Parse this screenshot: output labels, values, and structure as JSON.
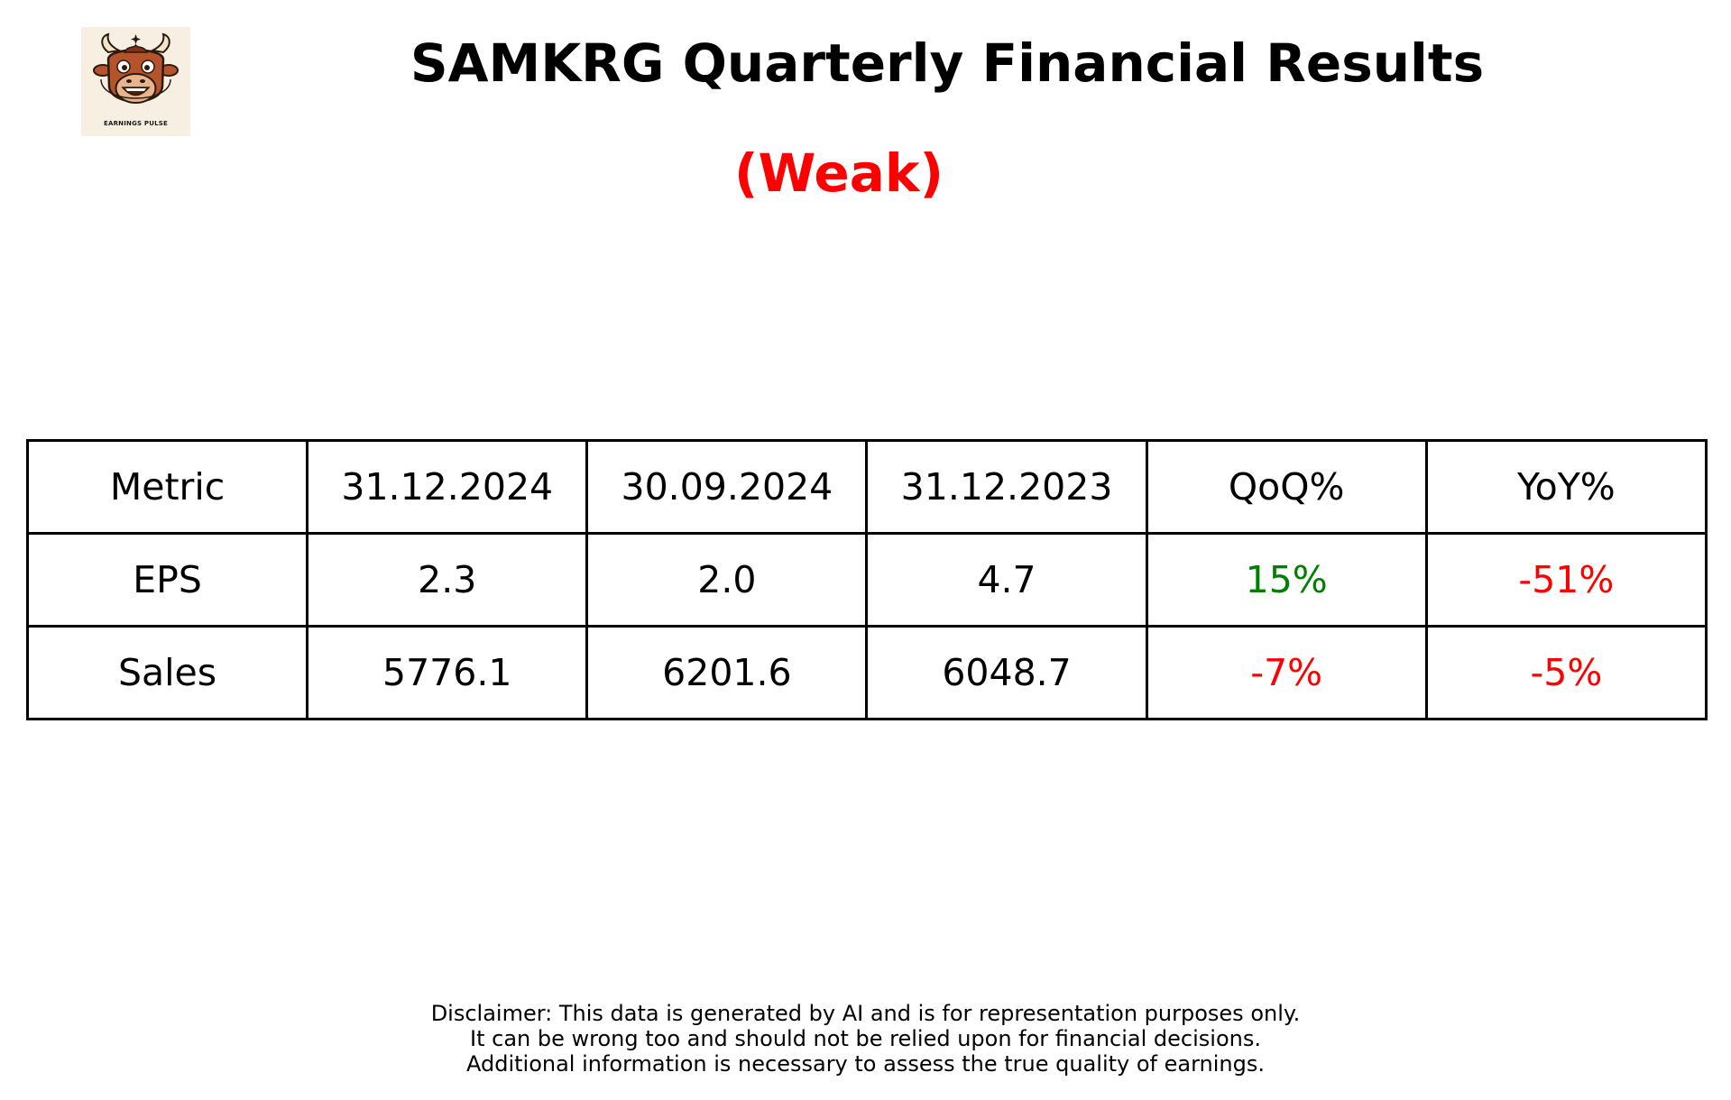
{
  "logo": {
    "text": "EARNINGS PULSE",
    "icon": "bull-mascot-icon"
  },
  "header": {
    "title": "SAMKRG Quarterly Financial Results",
    "rating": "(Weak)",
    "rating_color": "#ff0000"
  },
  "chart_data": {
    "type": "table",
    "columns": [
      "Metric",
      "31.12.2024",
      "30.09.2024",
      "31.12.2023",
      "QoQ%",
      "YoY%"
    ],
    "rows": [
      {
        "metric": "EPS",
        "q_31_12_2024": "2.3",
        "q_30_09_2024": "2.0",
        "q_31_12_2023": "4.7",
        "qoq": "15%",
        "yoy": "-51%"
      },
      {
        "metric": "Sales",
        "q_31_12_2024": "5776.1",
        "q_30_09_2024": "6201.6",
        "q_31_12_2023": "6048.7",
        "qoq": "-7%",
        "yoy": "-5%"
      }
    ],
    "colors": {
      "positive": "#008000",
      "negative": "#ff0000"
    }
  },
  "disclaimer": {
    "line1": "Disclaimer: This data is generated by AI and is for representation purposes only.",
    "line2": "It can be wrong too and should not be relied upon for financial decisions.",
    "line3": "Additional information is necessary to assess the true quality of earnings."
  }
}
